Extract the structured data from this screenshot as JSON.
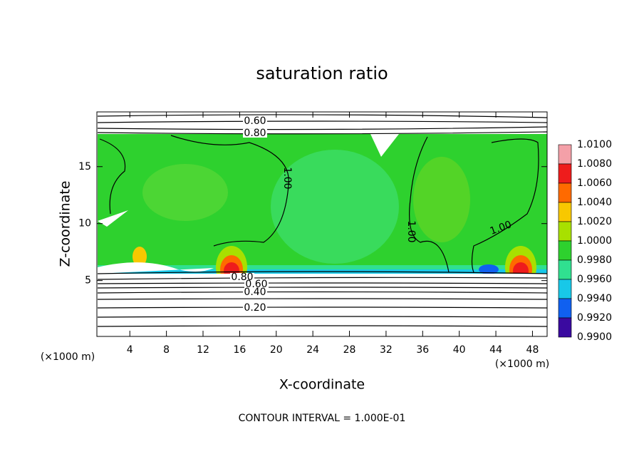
{
  "chart_data": {
    "type": "contour",
    "title": "saturation ratio",
    "x_label": "X-coordinate",
    "y_label": "Z-coordinate",
    "x_unit": "(×1000 m)",
    "y_unit": "(×1000 m)",
    "footer": "CONTOUR INTERVAL = 1.000E-01",
    "xlim": [
      0.4,
      49.6
    ],
    "xticks": [
      4,
      8,
      12,
      16,
      20,
      24,
      28,
      32,
      36,
      40,
      44,
      48
    ],
    "ylim": [
      0.1,
      19.8
    ],
    "yticks": [
      5,
      10,
      15
    ],
    "contour_labels": [
      {
        "value": 0.6,
        "label": "0.60"
      },
      {
        "value": 0.8,
        "label": "0.80"
      },
      {
        "value": 1.0,
        "label": "1.00"
      },
      {
        "value": 1.0,
        "label": "1.00"
      },
      {
        "value": 1.0,
        "label": "1.00"
      },
      {
        "value": 0.8,
        "label": "0.80"
      },
      {
        "value": 0.6,
        "label": "0.60"
      },
      {
        "value": 0.4,
        "label": "0.40"
      },
      {
        "value": 0.2,
        "label": "0.20"
      }
    ],
    "colorbar": {
      "ticks": [
        {
          "value": 1.01,
          "label": "1.0100"
        },
        {
          "value": 1.008,
          "label": "1.0080"
        },
        {
          "value": 1.006,
          "label": "1.0060"
        },
        {
          "value": 1.004,
          "label": "1.0040"
        },
        {
          "value": 1.002,
          "label": "1.0020"
        },
        {
          "value": 1.0,
          "label": "1.0000"
        },
        {
          "value": 0.998,
          "label": "0.9980"
        },
        {
          "value": 0.996,
          "label": "0.9960"
        },
        {
          "value": 0.994,
          "label": "0.9940"
        },
        {
          "value": 0.992,
          "label": "0.9920"
        },
        {
          "value": 0.99,
          "label": "0.9900"
        }
      ],
      "colors": [
        "#f4a0a8",
        "#ee1c1c",
        "#ff6a00",
        "#f8c800",
        "#a8e000",
        "#2ed12e",
        "#30e090",
        "#18c8e8",
        "#1060f0",
        "#3a0aa0"
      ]
    }
  }
}
